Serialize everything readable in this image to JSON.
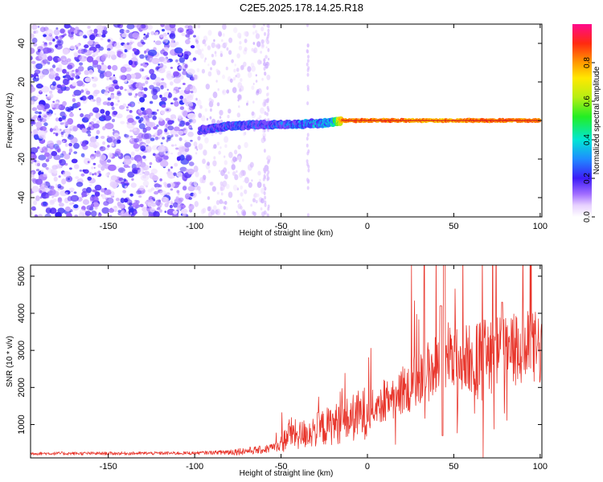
{
  "title": "C2E5.2025.178.14.25.R18",
  "chart_data": [
    {
      "type": "heatmap",
      "xlabel": "Height of straight line (km)",
      "ylabel": "Frequency (Hz)",
      "xlim": [
        -195,
        101
      ],
      "ylim": [
        -50,
        50
      ],
      "x_ticks": [
        -150,
        -100,
        -50,
        0,
        50,
        100
      ],
      "y_ticks": [
        -40,
        -20,
        0,
        20,
        40
      ],
      "colorbar": {
        "label": "Normalized spectral amplitude",
        "range": [
          0,
          1
        ],
        "ticks": [
          "0.0",
          "0.2",
          "0.4",
          "0.6",
          "0.8"
        ],
        "colormap": "rainbow"
      },
      "features": {
        "noise_region_x": [
          -195,
          -100
        ],
        "sparse_noise_x": [
          -100,
          -57
        ],
        "signal_track": {
          "x": [
            -97,
            -80,
            -60,
            -40,
            -20,
            -15,
            0,
            20,
            40,
            60,
            80,
            100
          ],
          "frequency": [
            -5,
            -3,
            -2,
            -2,
            -1,
            0,
            0,
            0,
            0,
            0,
            0,
            0
          ],
          "amplitude": [
            0.25,
            0.3,
            0.3,
            0.35,
            0.45,
            0.9,
            0.9,
            0.9,
            0.85,
            0.9,
            0.9,
            0.9
          ]
        }
      }
    },
    {
      "type": "line",
      "xlabel": "Height of straight line (km)",
      "ylabel": "SNR (10 * v/v)",
      "xlim": [
        -195,
        101
      ],
      "ylim": [
        100,
        5300
      ],
      "x_ticks": [
        -150,
        -100,
        -50,
        0,
        50,
        100
      ],
      "y_ticks": [
        1000,
        2000,
        3000,
        4000,
        5000
      ],
      "series": [
        {
          "color": "#e8352b",
          "x": [
            -195,
            -150,
            -100,
            -80,
            -60,
            -50,
            -45,
            -40,
            -30,
            -20,
            -10,
            0,
            10,
            20,
            30,
            40,
            45,
            50,
            60,
            70,
            80,
            90,
            100
          ],
          "values": [
            220,
            220,
            230,
            260,
            320,
            450,
            800,
            700,
            850,
            1000,
            1150,
            1350,
            1650,
            1900,
            2250,
            2600,
            2950,
            2700,
            2800,
            2900,
            2950,
            3000,
            3050
          ]
        }
      ]
    }
  ]
}
